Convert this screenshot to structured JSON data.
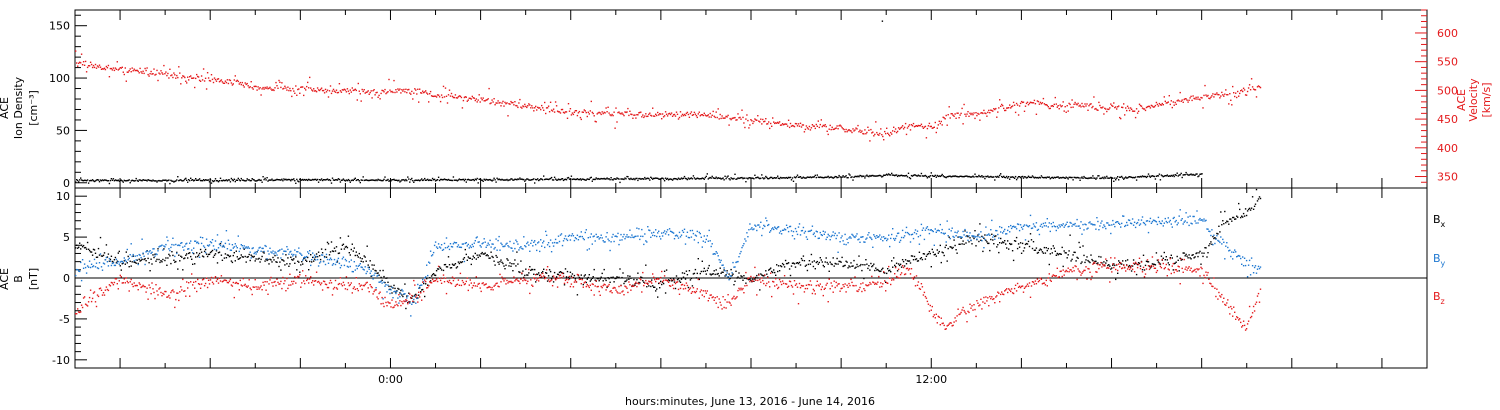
{
  "xaxis": {
    "label": "hours:minutes, June 13, 2016 - June 14, 2016",
    "tick_labels": [
      "0:00",
      "12:00"
    ]
  },
  "chart_data": [
    {
      "type": "scatter",
      "xlabel": "hours:minutes, June 13, 2016 - June 14, 2016",
      "x_unit": "hours relative to June 14, 2016 0:00",
      "xlim": [
        -7,
        23
      ],
      "ylabel_left": [
        "ACE",
        "Ion Density",
        "[cm⁻³]"
      ],
      "ylim_left": [
        -5,
        165
      ],
      "yticks_left": [
        0,
        50,
        100,
        150
      ],
      "ylabel_right": [
        "ACE",
        "Velocity",
        "[km/s]"
      ],
      "ylim_right": [
        330,
        640
      ],
      "yticks_right": [
        350,
        400,
        450,
        500,
        550,
        600
      ],
      "series": [
        {
          "name": "Ion Density",
          "axis": "left",
          "color": "#000000",
          "points": [
            [
              -7,
              3
            ],
            [
              -5,
              2.8
            ],
            [
              -3.5,
              3
            ],
            [
              -2,
              3.5
            ],
            [
              0,
              3
            ],
            [
              2,
              3.5
            ],
            [
              4,
              4
            ],
            [
              6,
              4.5
            ],
            [
              8,
              5
            ],
            [
              10,
              6
            ],
            [
              11,
              8
            ],
            [
              12,
              7
            ],
            [
              14,
              6
            ],
            [
              16,
              5
            ],
            [
              17,
              7
            ],
            [
              18,
              9
            ]
          ]
        },
        {
          "name": "Velocity",
          "axis": "right",
          "color": "#e41a1c",
          "points": [
            [
              -7,
              548
            ],
            [
              -6,
              538
            ],
            [
              -5,
              530
            ],
            [
              -4,
              518
            ],
            [
              -3.5,
              518
            ],
            [
              -3,
              505
            ],
            [
              -2,
              504
            ],
            [
              -1,
              500
            ],
            [
              0,
              500
            ],
            [
              0.5,
              500
            ],
            [
              1,
              493
            ],
            [
              2,
              484
            ],
            [
              3,
              473
            ],
            [
              4,
              463
            ],
            [
              5,
              461
            ],
            [
              6,
              459
            ],
            [
              7,
              458
            ],
            [
              8,
              448
            ],
            [
              9,
              440
            ],
            [
              10,
              434
            ],
            [
              11,
              424
            ],
            [
              11.5,
              440
            ],
            [
              12,
              436
            ],
            [
              12.3,
              456
            ],
            [
              13,
              460
            ],
            [
              14,
              479
            ],
            [
              15,
              475
            ],
            [
              16,
              473
            ],
            [
              16.5,
              465
            ],
            [
              17,
              477
            ],
            [
              18,
              489
            ],
            [
              19,
              500
            ],
            [
              19.3,
              508
            ]
          ]
        }
      ]
    },
    {
      "type": "scatter",
      "xlim": [
        -7,
        23
      ],
      "ylabel_left": [
        "ACE",
        "B",
        "[nT]"
      ],
      "ylim_left": [
        -11,
        11
      ],
      "yticks_left": [
        -10,
        -5,
        0,
        5,
        10
      ],
      "zero_line": true,
      "legend": "right",
      "series": [
        {
          "name": "Bx",
          "color": "#000000",
          "points": [
            [
              -7,
              4
            ],
            [
              -6,
              2
            ],
            [
              -5,
              2.5
            ],
            [
              -4,
              3
            ],
            [
              -3,
              2.5
            ],
            [
              -2,
              2
            ],
            [
              -1,
              4
            ],
            [
              -0.5,
              2
            ],
            [
              0,
              -1
            ],
            [
              0.5,
              -2.5
            ],
            [
              1,
              1
            ],
            [
              1.5,
              2
            ],
            [
              2,
              3
            ],
            [
              3,
              1
            ],
            [
              4,
              0
            ],
            [
              5,
              0
            ],
            [
              6,
              -0.8
            ],
            [
              7,
              1
            ],
            [
              8,
              0
            ],
            [
              9,
              2
            ],
            [
              10,
              2
            ],
            [
              11,
              1
            ],
            [
              12,
              3
            ],
            [
              13,
              5
            ],
            [
              14,
              4
            ],
            [
              15,
              3
            ],
            [
              16,
              1.5
            ],
            [
              17,
              2
            ],
            [
              18,
              3
            ],
            [
              18.5,
              7
            ],
            [
              19,
              8
            ],
            [
              19.3,
              10
            ]
          ]
        },
        {
          "name": "By",
          "color": "#1f78d1",
          "points": [
            [
              -7,
              1
            ],
            [
              -6,
              2
            ],
            [
              -5,
              4
            ],
            [
              -4,
              4.2
            ],
            [
              -3,
              3.5
            ],
            [
              -2,
              3
            ],
            [
              -1,
              2
            ],
            [
              -0.5,
              1
            ],
            [
              0,
              -1.5
            ],
            [
              0.5,
              -3
            ],
            [
              1,
              4
            ],
            [
              2,
              4.3
            ],
            [
              3,
              4
            ],
            [
              4,
              5
            ],
            [
              5,
              5
            ],
            [
              6,
              5.5
            ],
            [
              7,
              5
            ],
            [
              7.5,
              0
            ],
            [
              8,
              6.5
            ],
            [
              9,
              6
            ],
            [
              10,
              5
            ],
            [
              11,
              5
            ],
            [
              12,
              6
            ],
            [
              13,
              5
            ],
            [
              14,
              6.5
            ],
            [
              15,
              6.5
            ],
            [
              16,
              6.5
            ],
            [
              17,
              7
            ],
            [
              18,
              7
            ],
            [
              18.5,
              4
            ],
            [
              19,
              2
            ],
            [
              19.3,
              1
            ]
          ]
        },
        {
          "name": "Bz",
          "color": "#e41a1c",
          "points": [
            [
              -7,
              -4
            ],
            [
              -6,
              0
            ],
            [
              -5,
              -2
            ],
            [
              -4,
              0
            ],
            [
              -3,
              -1
            ],
            [
              -2,
              0
            ],
            [
              -1,
              -1
            ],
            [
              -0.5,
              -1
            ],
            [
              0,
              -3.5
            ],
            [
              0.5,
              -2.5
            ],
            [
              1,
              0
            ],
            [
              2,
              -1
            ],
            [
              3,
              0
            ],
            [
              4,
              0
            ],
            [
              5,
              -1.5
            ],
            [
              6,
              0
            ],
            [
              7,
              -2
            ],
            [
              7.5,
              -3
            ],
            [
              8,
              0
            ],
            [
              9,
              -1
            ],
            [
              10,
              -1
            ],
            [
              11,
              -0.5
            ],
            [
              11.5,
              1.5
            ],
            [
              12,
              -4
            ],
            [
              12.3,
              -6
            ],
            [
              13,
              -3
            ],
            [
              14,
              -1
            ],
            [
              15,
              1
            ],
            [
              16,
              1.5
            ],
            [
              17,
              1.5
            ],
            [
              18,
              1
            ],
            [
              18.5,
              -3
            ],
            [
              19,
              -6
            ],
            [
              19.3,
              -1
            ]
          ]
        }
      ]
    }
  ],
  "legend": {
    "bx_main": "B",
    "bx_sub": "x",
    "bx_color": "#000000",
    "by_main": "B",
    "by_sub": "y",
    "by_color": "#1f78d1",
    "bz_main": "B",
    "bz_sub": "z",
    "bz_color": "#e41a1c"
  }
}
